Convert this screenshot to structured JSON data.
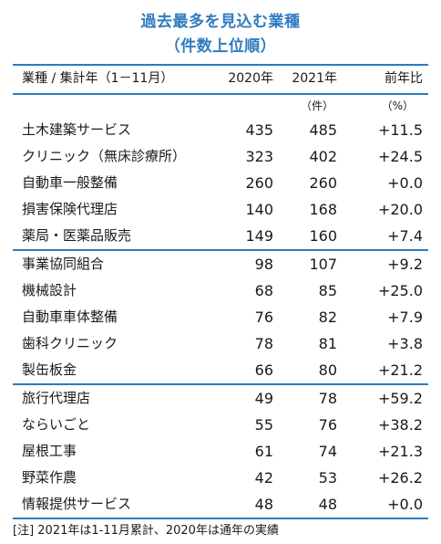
{
  "title": {
    "line1": "過去最多を見込む業種",
    "line2": "（件数上位順）"
  },
  "header": {
    "category": "業種 / 集計年（1－11月）",
    "col2020": "2020年",
    "col2021": "2021年",
    "ratio": "前年比"
  },
  "units": {
    "u2021": "（件）",
    "ratio": "（%）"
  },
  "rows": [
    {
      "name": "土木建築サービス",
      "v2020": "435",
      "v2021": "485",
      "ratio": "+11.5"
    },
    {
      "name": "クリニック（無床診療所）",
      "v2020": "323",
      "v2021": "402",
      "ratio": "+24.5"
    },
    {
      "name": "自動車一般整備",
      "v2020": "260",
      "v2021": "260",
      "ratio": "+0.0"
    },
    {
      "name": "損害保険代理店",
      "v2020": "140",
      "v2021": "168",
      "ratio": "+20.0"
    },
    {
      "name": "薬局・医薬品販売",
      "v2020": "149",
      "v2021": "160",
      "ratio": "+7.4"
    },
    {
      "name": "事業協同組合",
      "v2020": "98",
      "v2021": "107",
      "ratio": "+9.2"
    },
    {
      "name": "機械設計",
      "v2020": "68",
      "v2021": "85",
      "ratio": "+25.0"
    },
    {
      "name": "自動車車体整備",
      "v2020": "76",
      "v2021": "82",
      "ratio": "+7.9"
    },
    {
      "name": "歯科クリニック",
      "v2020": "78",
      "v2021": "81",
      "ratio": "+3.8"
    },
    {
      "name": "製缶板金",
      "v2020": "66",
      "v2021": "80",
      "ratio": "+21.2"
    },
    {
      "name": "旅行代理店",
      "v2020": "49",
      "v2021": "78",
      "ratio": "+59.2"
    },
    {
      "name": "ならいごと",
      "v2020": "55",
      "v2021": "76",
      "ratio": "+38.2"
    },
    {
      "name": "屋根工事",
      "v2020": "61",
      "v2021": "74",
      "ratio": "+21.3"
    },
    {
      "name": "野菜作農",
      "v2020": "42",
      "v2021": "53",
      "ratio": "+26.2"
    },
    {
      "name": "情報提供サービス",
      "v2020": "48",
      "v2021": "48",
      "ratio": "+0.0"
    }
  ],
  "note": "[注] 2021年は1-11月累計、2020年は通年の実績",
  "colors": {
    "accent": "#2e7bbf",
    "text": "#1a1a1a"
  }
}
